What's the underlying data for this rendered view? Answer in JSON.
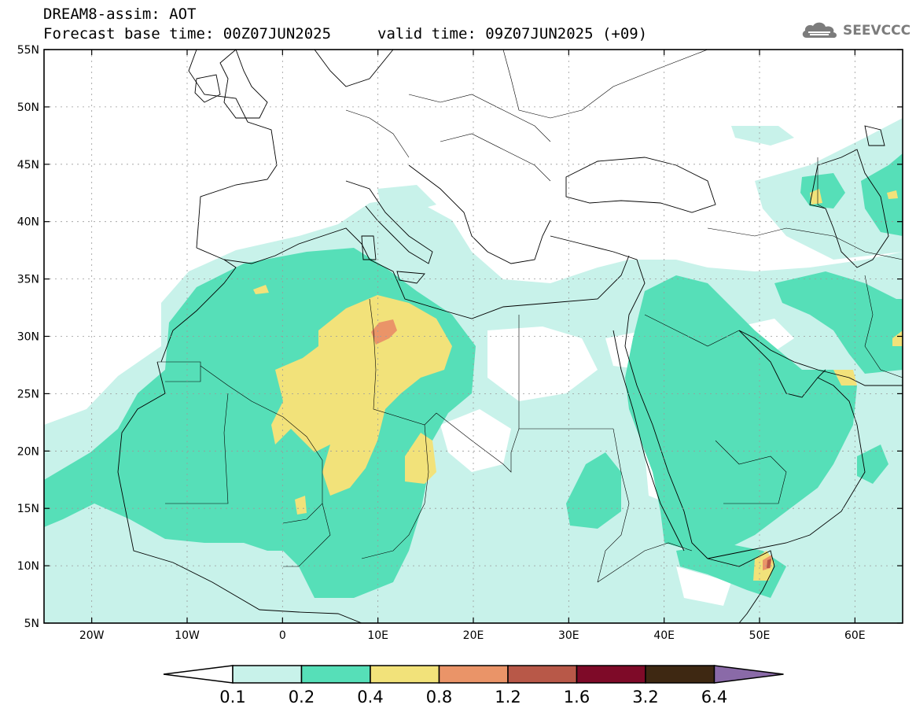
{
  "header": {
    "title": "DREAM8-assim: AOT",
    "base_time": "Forecast base time: 00Z07JUN2025",
    "valid_time": "valid time: 09Z07JUN2025 (+09)"
  },
  "logo": {
    "text": "SEEVCCC",
    "icon": "cloud-icon"
  },
  "map": {
    "lon_range": [
      -25,
      65
    ],
    "lat_range": [
      5,
      55
    ],
    "lat_ticks": [
      {
        "value": 55,
        "label": "55N"
      },
      {
        "value": 50,
        "label": "50N"
      },
      {
        "value": 45,
        "label": "45N"
      },
      {
        "value": 40,
        "label": "40N"
      },
      {
        "value": 35,
        "label": "35N"
      },
      {
        "value": 30,
        "label": "30N"
      },
      {
        "value": 25,
        "label": "25N"
      },
      {
        "value": 20,
        "label": "20N"
      },
      {
        "value": 15,
        "label": "15N"
      },
      {
        "value": 10,
        "label": "10N"
      },
      {
        "value": 5,
        "label": "5N"
      }
    ],
    "lon_ticks": [
      {
        "value": -20,
        "label": "20W"
      },
      {
        "value": -10,
        "label": "10W"
      },
      {
        "value": 0,
        "label": "0"
      },
      {
        "value": 10,
        "label": "10E"
      },
      {
        "value": 20,
        "label": "20E"
      },
      {
        "value": 30,
        "label": "30E"
      },
      {
        "value": 40,
        "label": "40E"
      },
      {
        "value": 50,
        "label": "50E"
      },
      {
        "value": 60,
        "label": "60E"
      }
    ]
  },
  "colorbar": {
    "levels": [
      "0.1",
      "0.2",
      "0.4",
      "0.8",
      "1.2",
      "1.6",
      "3.2",
      "6.4"
    ],
    "colors": [
      "#c8f2ea",
      "#56dfb8",
      "#f2e27a",
      "#ea9468",
      "#b85848",
      "#7e0a28",
      "#3e2812",
      "#8a6aa8"
    ]
  }
}
